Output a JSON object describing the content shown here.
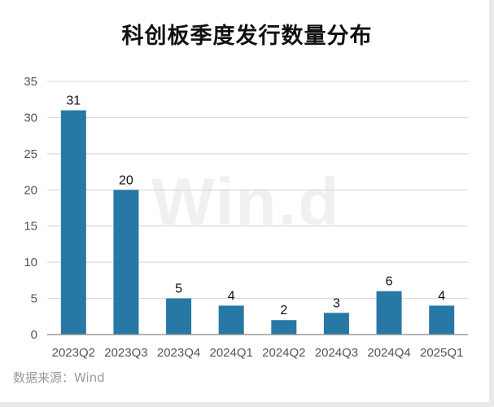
{
  "title": "科创板季度发行数量分布",
  "watermark": "Win.d",
  "source": "数据来源：Wind",
  "colors": {
    "bar": "#2878A5",
    "grid": "#d4d4d4",
    "axis": "#888888"
  },
  "chart_data": {
    "type": "bar",
    "title": "科创板季度发行数量分布",
    "categories": [
      "2023Q2",
      "2023Q3",
      "2023Q4",
      "2024Q1",
      "2024Q2",
      "2024Q3",
      "2024Q4",
      "2025Q1"
    ],
    "values": [
      31,
      20,
      5,
      4,
      2,
      3,
      6,
      4
    ],
    "ylim": [
      0,
      35
    ],
    "yticks": [
      0,
      5,
      10,
      15,
      20,
      25,
      30,
      35
    ],
    "xlabel": "",
    "ylabel": "",
    "grid": true,
    "data_labels": true
  }
}
